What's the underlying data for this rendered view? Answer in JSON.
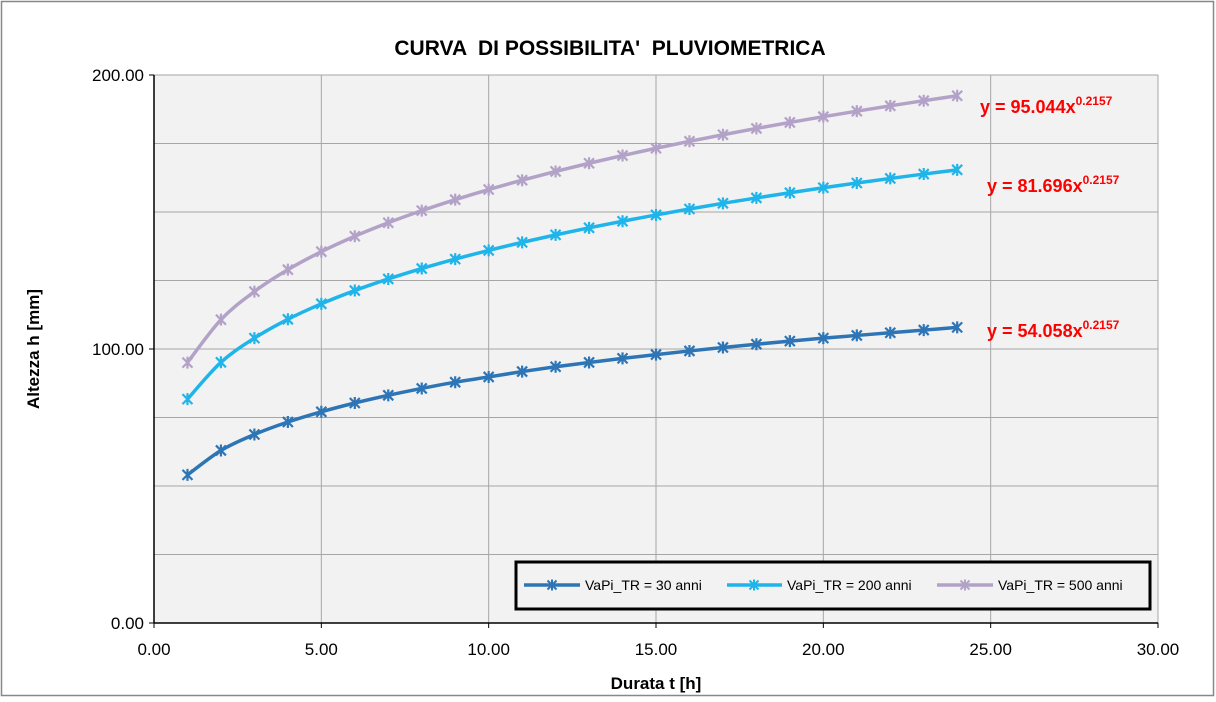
{
  "chart_data": {
    "type": "line",
    "title": "CURVA  DI POSSIBILITA'  PLUVIOMETRICA",
    "xlabel": "Durata t [h]",
    "ylabel": "Altezza h [mm]",
    "xlim": [
      0,
      30
    ],
    "ylim": [
      0,
      200
    ],
    "x_ticks": [
      "0.00",
      "5.00",
      "10.00",
      "15.00",
      "20.00",
      "25.00",
      "30.00"
    ],
    "y_ticks": [
      "0.00",
      "100.00",
      "200.00"
    ],
    "grid": true,
    "legend_position": "bottom-right",
    "x": [
      1,
      2,
      3,
      4,
      5,
      6,
      7,
      8,
      9,
      10,
      11,
      12,
      13,
      14,
      15,
      16,
      17,
      18,
      19,
      20,
      21,
      22,
      23,
      24
    ],
    "series": [
      {
        "name": "VaPi_TR = 30 anni",
        "color": "#2e75b6",
        "marker": "star",
        "values": [
          54.06,
          62.97,
          68.8,
          73.35,
          77.08,
          80.29,
          83.09,
          85.6,
          87.88,
          89.8,
          91.76,
          93.51,
          95.09,
          96.57,
          97.96,
          99.29,
          100.55,
          101.75,
          102.88,
          103.96,
          104.95,
          105.94,
          106.91,
          107.88
        ]
      },
      {
        "name": "VaPi_TR = 200 anni",
        "color": "#1fb5ea",
        "marker": "star",
        "values": [
          81.7,
          95.15,
          103.97,
          110.84,
          116.49,
          121.33,
          125.57,
          129.36,
          132.81,
          135.98,
          138.91,
          141.65,
          144.22,
          146.63,
          148.92,
          151.1,
          153.17,
          155.14,
          157.03,
          158.84,
          160.58,
          162.25,
          163.85,
          165.39
        ]
      },
      {
        "name": "VaPi_TR = 500 anni",
        "color": "#b3a2c7",
        "marker": "star",
        "values": [
          95.04,
          110.7,
          120.96,
          128.95,
          135.52,
          141.15,
          146.08,
          150.49,
          154.5,
          158.2,
          161.61,
          164.8,
          167.79,
          170.6,
          173.27,
          175.8,
          178.2,
          180.49,
          182.68,
          184.79,
          186.8,
          188.75,
          190.62,
          192.42
        ]
      }
    ],
    "annotations": [
      {
        "base": "y = 95.044x",
        "exp": "0.2157",
        "color": "#ff0000"
      },
      {
        "base": "y = 81.696x",
        "exp": "0.2157",
        "color": "#ff0000"
      },
      {
        "base": "y = 54.058x",
        "exp": "0.2157",
        "color": "#ff0000"
      }
    ]
  }
}
